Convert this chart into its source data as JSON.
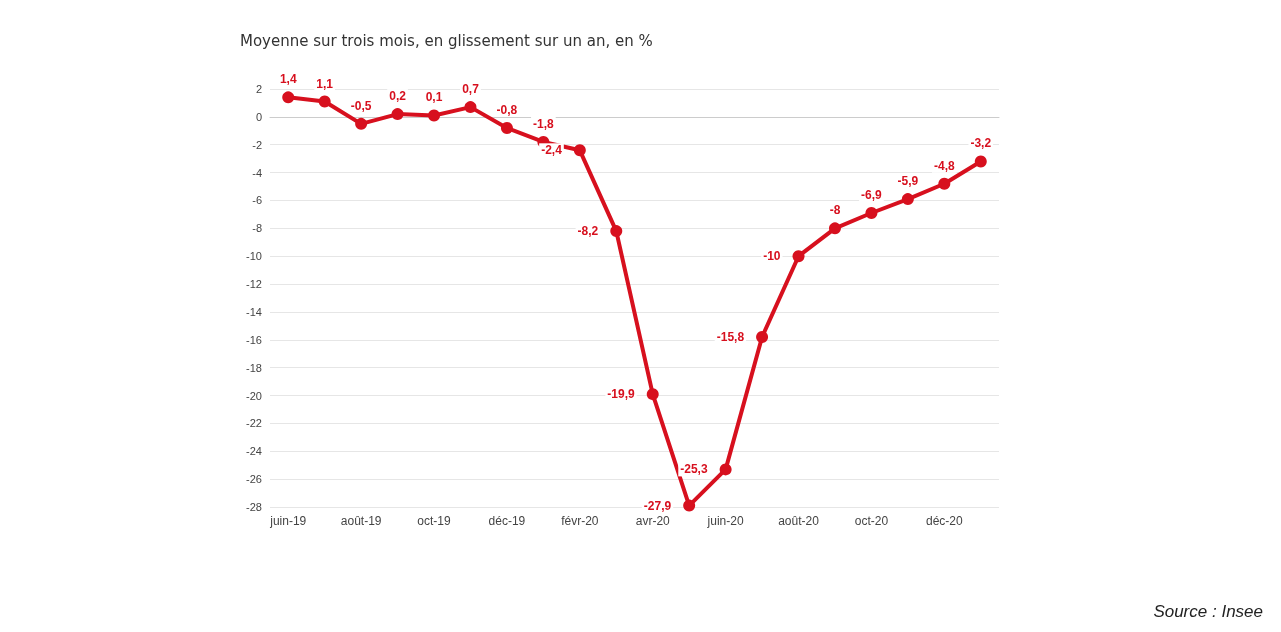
{
  "chart_data": {
    "type": "line",
    "title": "Moyenne sur trois mois, en glissement sur un an, en %",
    "categories": [
      "juin-19",
      null,
      "août-19",
      null,
      "oct-19",
      null,
      "déc-19",
      null,
      "févr-20",
      null,
      "avr-20",
      null,
      "juin-20",
      null,
      "août-20",
      null,
      "oct-20",
      null,
      "déc-20",
      null
    ],
    "series": [
      {
        "color": "#d7101e",
        "values": [
          1.4,
          1.1,
          -0.5,
          0.2,
          0.1,
          0.7,
          -0.8,
          -1.8,
          -2.4,
          -8.2,
          -19.9,
          -27.9,
          -25.3,
          -15.8,
          -10,
          -8,
          -6.9,
          -5.9,
          -4.8,
          -3.2
        ],
        "value_labels": [
          "1,4",
          "1,1",
          "-0,5",
          "0,2",
          "0,1",
          "0,7",
          "-0,8",
          "-1,8",
          "-2,4",
          "-8,2",
          "-19,9",
          "-27,9",
          "-25,3",
          "-15,8",
          "-10",
          "-8",
          "-6,9",
          "-5,9",
          "-4,8",
          "-3,2"
        ]
      }
    ],
    "ylim": [
      -28,
      2
    ],
    "yticks": [
      -28,
      -26,
      -24,
      -22,
      -20,
      -18,
      -16,
      -14,
      -12,
      -10,
      -8,
      -6,
      -4,
      -2,
      0,
      2
    ],
    "grid": "y",
    "marker": "circle",
    "line_style": "solid",
    "annotations": [
      "Source : Insee"
    ]
  }
}
